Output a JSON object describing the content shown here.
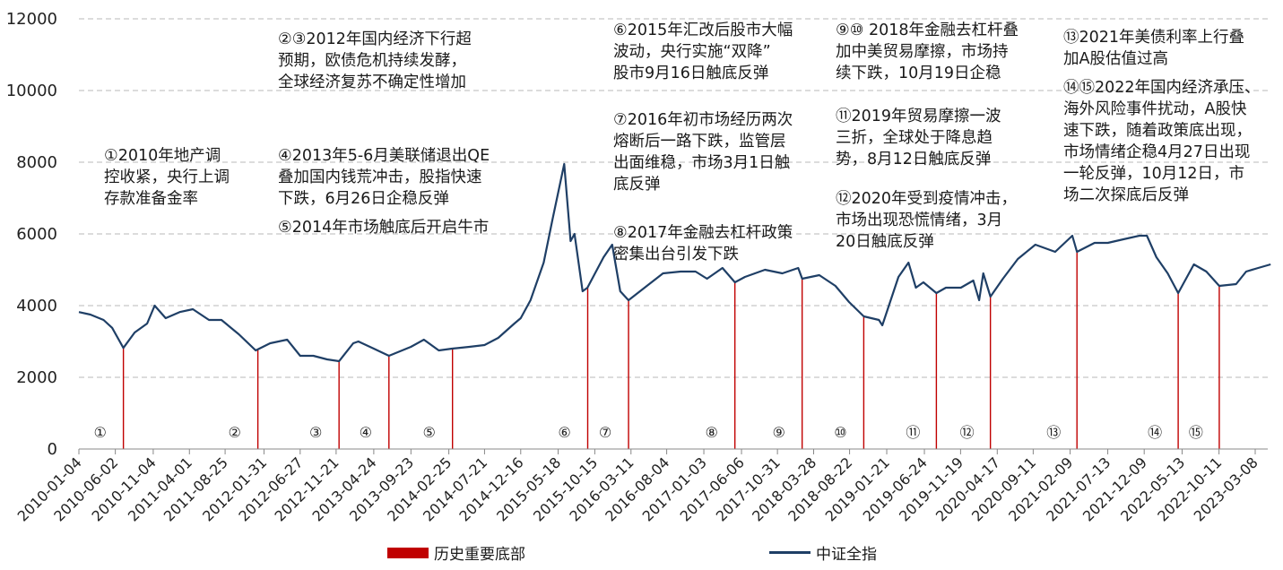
{
  "chart_data": {
    "type": "line",
    "title": "",
    "xlabel": "",
    "ylabel": "",
    "ylim": [
      0,
      12000
    ],
    "yticks": [
      0,
      2000,
      4000,
      6000,
      8000,
      10000,
      12000
    ],
    "grid": "horizontal-dashed",
    "xticks": [
      "2010-01-04",
      "2010-06-02",
      "2010-11-04",
      "2011-04-01",
      "2011-08-25",
      "2012-01-31",
      "2012-06-27",
      "2012-11-21",
      "2013-04-24",
      "2013-09-23",
      "2014-02-25",
      "2014-07-21",
      "2014-12-16",
      "2015-05-18",
      "2015-10-15",
      "2016-03-11",
      "2016-08-04",
      "2017-01-03",
      "2017-06-06",
      "2017-10-31",
      "2018-03-28",
      "2018-08-22",
      "2019-01-21",
      "2019-06-24",
      "2019-11-19",
      "2020-04-17",
      "2020-09-11",
      "2021-02-09",
      "2021-07-13",
      "2021-12-09",
      "2022-05-13",
      "2022-10-11",
      "2023-03-08"
    ],
    "series": [
      {
        "name": "中证全指",
        "color": "#1f3f66",
        "x": [
          "2010-01-04",
          "2010-02-20",
          "2010-04-15",
          "2010-05-20",
          "2010-07-05",
          "2010-08-20",
          "2010-10-10",
          "2010-11-10",
          "2010-12-25",
          "2011-02-20",
          "2011-04-15",
          "2011-06-20",
          "2011-08-10",
          "2011-10-20",
          "2011-12-28",
          "2012-02-25",
          "2012-05-05",
          "2012-06-27",
          "2012-08-20",
          "2012-10-15",
          "2012-12-03",
          "2013-01-30",
          "2013-02-20",
          "2013-04-24",
          "2013-06-25",
          "2013-09-23",
          "2013-11-15",
          "2014-01-15",
          "2014-03-10",
          "2014-05-20",
          "2014-07-21",
          "2014-09-15",
          "2014-11-20",
          "2014-12-16",
          "2015-01-25",
          "2015-03-20",
          "2015-04-25",
          "2015-06-12",
          "2015-07-08",
          "2015-07-24",
          "2015-08-26",
          "2015-09-15",
          "2015-11-20",
          "2015-12-25",
          "2016-01-27",
          "2016-03-01",
          "2016-05-15",
          "2016-07-20",
          "2016-09-30",
          "2016-11-30",
          "2017-01-16",
          "2017-03-20",
          "2017-05-10",
          "2017-06-20",
          "2017-09-10",
          "2017-11-20",
          "2018-01-24",
          "2018-02-09",
          "2018-04-20",
          "2018-06-25",
          "2018-08-20",
          "2018-10-19",
          "2018-12-20",
          "2019-01-03",
          "2019-03-10",
          "2019-04-20",
          "2019-05-20",
          "2019-06-20",
          "2019-08-12",
          "2019-09-20",
          "2019-11-20",
          "2020-01-10",
          "2020-02-03",
          "2020-02-20",
          "2020-03-20",
          "2020-05-10",
          "2020-07-10",
          "2020-09-20",
          "2020-12-10",
          "2021-02-18",
          "2021-03-09",
          "2021-05-20",
          "2021-07-13",
          "2021-09-15",
          "2021-11-20",
          "2021-12-20",
          "2022-01-28",
          "2022-03-15",
          "2022-04-27",
          "2022-06-30",
          "2022-08-20",
          "2022-10-12",
          "2022-12-20",
          "2023-01-30",
          "2023-03-20",
          "2023-05-10"
        ],
        "values": [
          3820,
          3750,
          3600,
          3380,
          2820,
          3250,
          3500,
          4000,
          3650,
          3820,
          3900,
          3600,
          3600,
          3200,
          2750,
          2950,
          3050,
          2600,
          2600,
          2500,
          2450,
          2950,
          3000,
          2800,
          2600,
          2850,
          3050,
          2750,
          2800,
          2850,
          2900,
          3100,
          3500,
          3650,
          4150,
          5200,
          6400,
          7950,
          5800,
          6000,
          4400,
          4500,
          5350,
          5700,
          4400,
          4150,
          4550,
          4900,
          4950,
          4950,
          4750,
          5050,
          4650,
          4800,
          5000,
          4900,
          5050,
          4750,
          4850,
          4550,
          4100,
          3700,
          3600,
          3450,
          4800,
          5200,
          4500,
          4650,
          4350,
          4500,
          4500,
          4700,
          4150,
          4900,
          4250,
          4750,
          5300,
          5700,
          5500,
          5950,
          5500,
          5750,
          5750,
          5850,
          5950,
          5950,
          5350,
          4900,
          4350,
          5150,
          4950,
          4550,
          4600,
          4950,
          5050,
          5150
        ]
      }
    ],
    "bottoms": [
      {
        "date": "2010-07-05",
        "label": "①"
      },
      {
        "date": "2012-01-06",
        "label": "②"
      },
      {
        "date": "2012-12-03",
        "label": "③"
      },
      {
        "date": "2013-06-25",
        "label": "④"
      },
      {
        "date": "2014-03-12",
        "label": "⑤"
      },
      {
        "date": "2015-09-16",
        "label": "⑥"
      },
      {
        "date": "2016-03-01",
        "label": "⑦"
      },
      {
        "date": "2017-05-10",
        "label": "⑧"
      },
      {
        "date": "2018-02-09",
        "label": "⑨"
      },
      {
        "date": "2018-10-19",
        "label": "⑩"
      },
      {
        "date": "2019-08-12",
        "label": "⑪"
      },
      {
        "date": "2020-03-20",
        "label": "⑫"
      },
      {
        "date": "2021-03-09",
        "label": "⑬"
      },
      {
        "date": "2022-04-27",
        "label": "⑭"
      },
      {
        "date": "2022-10-12",
        "label": "⑮"
      }
    ],
    "bottom_color": "#c00000",
    "legend": [
      {
        "label": "历史重要底部",
        "swatch": "bar",
        "color": "#c00000"
      },
      {
        "label": "中证全指",
        "swatch": "line",
        "color": "#1f3f66"
      }
    ],
    "legend_placement": "bottom"
  },
  "annotations": [
    {
      "id": "ann1",
      "text": "①2010年地产调\n控收紧，央行上调\n存款准备金率"
    },
    {
      "id": "ann2",
      "text": "②③2012年国内经济下行超\n预期，欧债危机持续发酵，\n全球经济复苏不确定性增加"
    },
    {
      "id": "ann3",
      "text": "④2013年5-6月美联储退出QE\n叠加国内钱荒冲击，股指快速\n下跌，6月26日企稳反弹"
    },
    {
      "id": "ann4",
      "text": "⑤2014年市场触底后开启牛市"
    },
    {
      "id": "ann5",
      "text": "⑥2015年汇改后股市大幅\n波动，央行实施“双降”\n股市9月16日触底反弹"
    },
    {
      "id": "ann6",
      "text": "⑦2016年初市场经历两次\n熔断后一路下跌，监管层\n出面维稳，市场3月1日触\n底反弹"
    },
    {
      "id": "ann7",
      "text": "⑧2017年金融去杠杆政策\n密集出台引发下跌"
    },
    {
      "id": "ann8",
      "text": "⑨⑩ 2018年金融去杠杆叠\n加中美贸易摩擦，市场持\n续下跌，10月19日企稳"
    },
    {
      "id": "ann9",
      "text": "⑪2019年贸易摩擦一波\n三折，全球处于降息趋\n势，8月12日触底反弹"
    },
    {
      "id": "ann10",
      "text": "⑫2020年受到疫情冲击，\n市场出现恐慌情绪，3月\n20日触底反弹"
    },
    {
      "id": "ann11",
      "text": "⑬2021年美债利率上行叠\n加A股估值过高"
    },
    {
      "id": "ann12",
      "text": "⑭⑮2022年国内经济承压、\n海外风险事件扰动，A股快\n速下跌，随着政策底出现，\n市场情绪企稳4月27日出现\n一轮反弹，10月12日，市\n场二次探底后反弹"
    }
  ]
}
